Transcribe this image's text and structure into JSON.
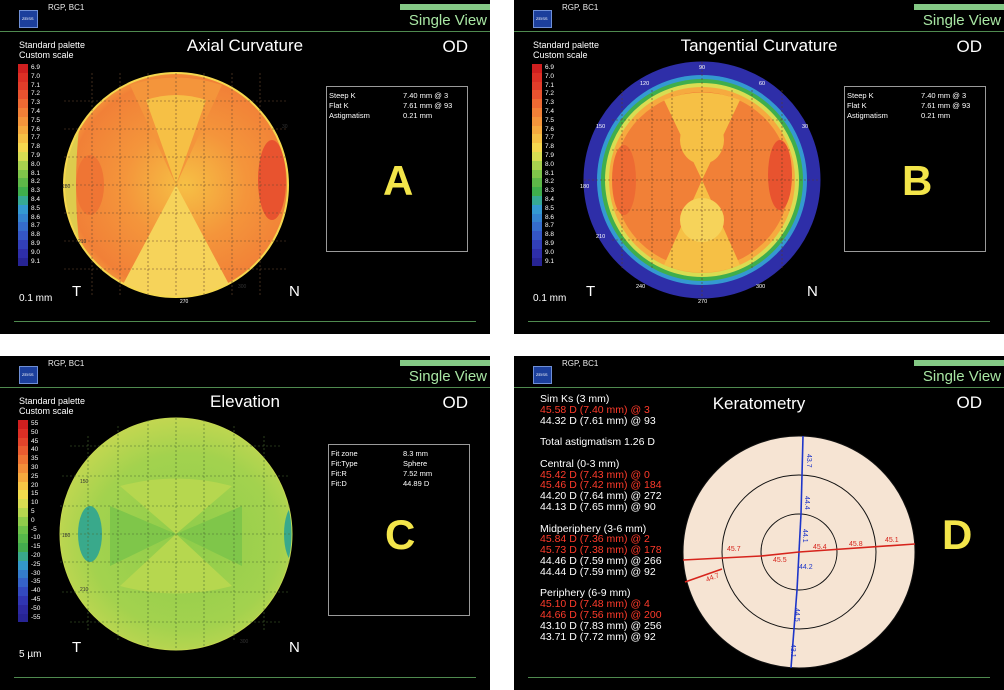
{
  "app": {
    "subtitle": "RGP, BC1",
    "view_label": "Single View",
    "eye": "OD",
    "logo_text": "ZEISS"
  },
  "panels": [
    {
      "title": "Axial Curvature",
      "palette_line1": "Standard palette",
      "palette_line2": "Custom scale",
      "scale_unit": "0.1 mm",
      "scale_labels": [
        "6.9",
        "7.0",
        "7.1",
        "7.2",
        "7.3",
        "7.4",
        "7.5",
        "7.6",
        "7.7",
        "7.8",
        "7.9",
        "8.0",
        "8.1",
        "8.2",
        "8.3",
        "8.4",
        "8.5",
        "8.6",
        "8.7",
        "8.8",
        "8.9",
        "9.0",
        "9.1"
      ],
      "side_left": "T",
      "side_right": "N",
      "letter": "A",
      "info": [
        {
          "label": "Steep K",
          "value": "7.40 mm @ 3"
        },
        {
          "label": "Flat K",
          "value": "7.61 mm @ 93"
        },
        {
          "label": "Astigmatism",
          "value": "0.21 mm"
        }
      ],
      "axis_labels": [
        "180",
        "210",
        "270",
        "300",
        "30"
      ]
    },
    {
      "title": "Tangential Curvature",
      "palette_line1": "Standard palette",
      "palette_line2": "Custom scale",
      "scale_unit": "0.1 mm",
      "scale_labels": [
        "6.9",
        "7.0",
        "7.1",
        "7.2",
        "7.3",
        "7.4",
        "7.5",
        "7.6",
        "7.7",
        "7.8",
        "7.9",
        "8.0",
        "8.1",
        "8.2",
        "8.3",
        "8.4",
        "8.5",
        "8.6",
        "8.7",
        "8.8",
        "8.9",
        "9.0",
        "9.1"
      ],
      "side_left": "T",
      "side_right": "N",
      "letter": "B",
      "info": [
        {
          "label": "Steep K",
          "value": "7.40 mm @ 3"
        },
        {
          "label": "Flat K",
          "value": "7.61 mm @ 93"
        },
        {
          "label": "Astigmatism",
          "value": "0.21 mm"
        }
      ],
      "axis_labels": [
        "90",
        "120",
        "60",
        "150",
        "30",
        "180",
        "210",
        "240",
        "270",
        "300"
      ]
    },
    {
      "title": "Elevation",
      "palette_line1": "Standard palette",
      "palette_line2": "Custom scale",
      "scale_unit": "5 µm",
      "scale_labels": [
        "55",
        "50",
        "45",
        "40",
        "35",
        "30",
        "25",
        "20",
        "15",
        "10",
        "5",
        "0",
        "-5",
        "-10",
        "-15",
        "-20",
        "-25",
        "-30",
        "-35",
        "-40",
        "-45",
        "-50",
        "-55"
      ],
      "side_left": "T",
      "side_right": "N",
      "letter": "C",
      "info": [
        {
          "label": "Fit zone",
          "value": "8.3 mm"
        },
        {
          "label": "Fit:Type",
          "value": "Sphere"
        },
        {
          "label": "Fit:R",
          "value": "7.52 mm"
        },
        {
          "label": "Fit:D",
          "value": "44.89 D"
        }
      ],
      "axis_labels": [
        "150",
        "180",
        "210",
        "300"
      ]
    },
    {
      "title": "Keratometry",
      "letter": "D",
      "lines": [
        {
          "text": "Sim Ks (3 mm)",
          "color": "#ffffff"
        },
        {
          "text": "45.58 D (7.40 mm) @ 3",
          "color": "#ff3b2b"
        },
        {
          "text": "44.32 D (7.61 mm) @ 93",
          "color": "#ffffff"
        },
        {
          "text": "",
          "color": "#ffffff"
        },
        {
          "text": "Total astigmatism 1.26 D",
          "color": "#ffffff"
        },
        {
          "text": "",
          "color": "#ffffff"
        },
        {
          "text": "Central (0-3 mm)",
          "color": "#ffffff"
        },
        {
          "text": "45.42 D (7.43 mm) @ 0",
          "color": "#ff3b2b"
        },
        {
          "text": "45.46 D (7.42 mm) @ 184",
          "color": "#ff3b2b"
        },
        {
          "text": "44.20 D (7.64 mm) @ 272",
          "color": "#ffffff"
        },
        {
          "text": "44.13 D (7.65 mm) @ 90",
          "color": "#ffffff"
        },
        {
          "text": "",
          "color": "#ffffff"
        },
        {
          "text": "Midperiphery (3-6 mm)",
          "color": "#ffffff"
        },
        {
          "text": "45.84 D (7.36 mm) @ 2",
          "color": "#ff3b2b"
        },
        {
          "text": "45.73 D (7.38 mm) @ 178",
          "color": "#ff3b2b"
        },
        {
          "text": "44.46 D (7.59 mm) @ 266",
          "color": "#ffffff"
        },
        {
          "text": "44.44 D (7.59 mm) @ 92",
          "color": "#ffffff"
        },
        {
          "text": "",
          "color": "#ffffff"
        },
        {
          "text": "Periphery (6-9 mm)",
          "color": "#ffffff"
        },
        {
          "text": "45.10 D (7.48 mm) @ 4",
          "color": "#ff3b2b"
        },
        {
          "text": "44.66 D (7.56 mm) @ 200",
          "color": "#ff3b2b"
        },
        {
          "text": "43.10 D (7.83 mm) @ 256",
          "color": "#ffffff"
        },
        {
          "text": "43.71 D (7.72 mm) @ 92",
          "color": "#ffffff"
        }
      ],
      "diagram_values": {
        "vertical": [
          "43.7",
          "44.4",
          "44.1",
          "44.2",
          "44.5",
          "43.1"
        ],
        "horizontal": [
          "45.4",
          "45.8",
          "45.1",
          "45.7",
          "45.5",
          "44.7"
        ]
      }
    }
  ],
  "colors": {
    "curv_scale": [
      "#cf1f1f",
      "#dc2f25",
      "#e23d2a",
      "#e8532f",
      "#ed6a33",
      "#f18037",
      "#f4953b",
      "#f6aa3f",
      "#f6c045",
      "#f5d74f",
      "#d8dd52",
      "#a9d24e",
      "#7fc64a",
      "#5eb848",
      "#3fae4c",
      "#36a994",
      "#3499d1",
      "#3483cf",
      "#356ccc",
      "#3456c5",
      "#323fb8",
      "#2e2ea8",
      "#272494"
    ],
    "elev_scale": [
      "#cf1f1f",
      "#dc2f25",
      "#e3442b",
      "#ea5c30",
      "#ef7534",
      "#f38e39",
      "#f6a93e",
      "#f7c545",
      "#f2dc4d",
      "#d8dd52",
      "#b6d74f",
      "#8fcd4b",
      "#6dc249",
      "#56b84a",
      "#43ac4e",
      "#39a98b",
      "#3397c9",
      "#347ccc",
      "#3562c8",
      "#3349bf",
      "#3035b1",
      "#2c29a0",
      "#272494"
    ],
    "accent_green": "#84c985",
    "cornea_bg": "#f6e4d3"
  }
}
